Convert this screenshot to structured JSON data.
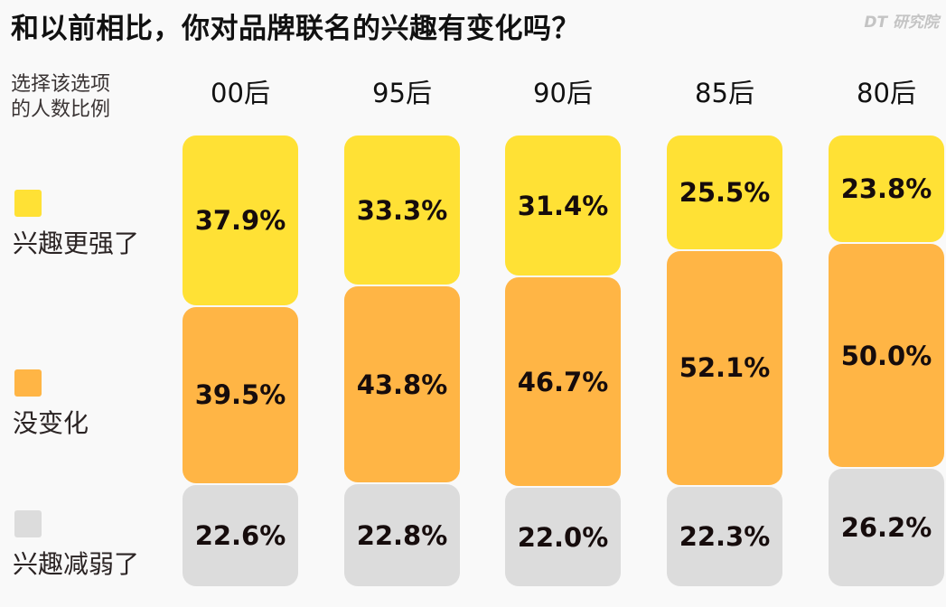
{
  "header": {
    "title": "和以前相比，你对品牌联名的兴趣有变化吗？",
    "logo": "DT 研究院"
  },
  "y_label": [
    "选择该选项",
    "的人数比例"
  ],
  "legend": [
    {
      "label": "兴趣更强了",
      "color": "#ffe135"
    },
    {
      "label": "没变化",
      "color": "#ffb545"
    },
    {
      "label": "兴趣减弱了",
      "color": "#dcdcdc"
    }
  ],
  "colors": {
    "stronger": "#ffe135",
    "same": "#ffb545",
    "weaker": "#dcdcdc",
    "background": "#f9f9f9"
  },
  "chart_data": {
    "type": "bar",
    "stacked": true,
    "normalized": true,
    "title": "和以前相比，你对品牌联名的兴趣有变化吗？",
    "ylabel": "选择该选项的人数比例",
    "xlabel": "",
    "categories": [
      "00后",
      "95后",
      "90后",
      "85后",
      "80后"
    ],
    "series": [
      {
        "name": "兴趣更强了",
        "values": [
          37.9,
          33.3,
          31.4,
          25.5,
          23.8
        ],
        "labels": [
          "37.9%",
          "33.3%",
          "31.4%",
          "25.5%",
          "23.8%"
        ]
      },
      {
        "name": "没变化",
        "values": [
          39.5,
          43.8,
          46.7,
          52.1,
          50.0
        ],
        "labels": [
          "39.5%",
          "43.8%",
          "46.7%",
          "52.1%",
          "50.0%"
        ]
      },
      {
        "name": "兴趣减弱了",
        "values": [
          22.6,
          22.8,
          22.0,
          22.3,
          26.2
        ],
        "labels": [
          "22.6%",
          "22.8%",
          "22.0%",
          "22.3%",
          "26.2%"
        ]
      }
    ],
    "ylim": [
      0,
      100
    ],
    "grid": false,
    "legend_position": "left"
  }
}
